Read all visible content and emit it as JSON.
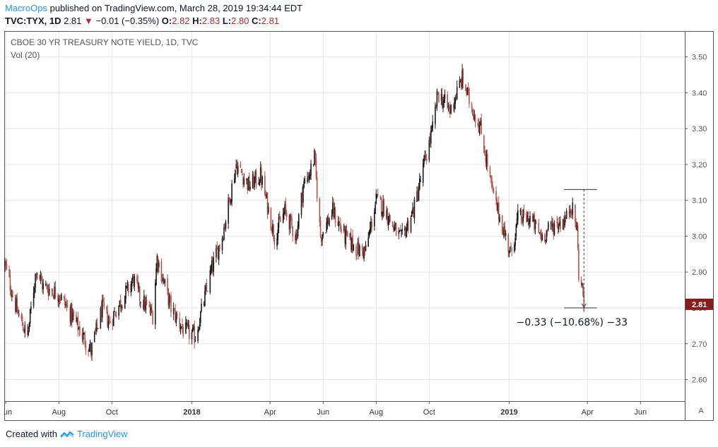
{
  "header": {
    "publisher": "MacroOps",
    "published_text": "published on TradingView.com, March 28, 2019 19:34:44 EDT",
    "symbol": "TVC:TYX, 1D",
    "last": "2.81",
    "change_arrow": "▼",
    "change": "−0.01 (−0.35%)",
    "o_label": "O:",
    "o_value": "2.82",
    "h_label": "H:",
    "h_value": "2.83",
    "l_label": "L:",
    "l_value": "2.80",
    "c_label": "C:",
    "c_value": "2.81"
  },
  "footer": {
    "created_with": "Created with",
    "brand": "TradingView",
    "logo_icon": "tradingview-logo-icon"
  },
  "axis_button": "A",
  "chart_data": {
    "type": "candlestick",
    "title": "CBOE 30 YR TREASURY NOTE YIELD, 1D, TVC",
    "subtitle": "Vol (20)",
    "ylim": [
      2.54,
      3.57
    ],
    "y_ticks": [
      "3.50",
      "3.40",
      "3.30",
      "3.20",
      "3.10",
      "3.00",
      "2.90",
      "2.80",
      "2.70",
      "2.60"
    ],
    "y_tick_values": [
      3.5,
      3.4,
      3.3,
      3.2,
      3.1,
      3.0,
      2.9,
      2.8,
      2.7,
      2.6
    ],
    "x_ticks": [
      {
        "label": "Jun",
        "date": "2017-06-01",
        "bold": false
      },
      {
        "label": "Aug",
        "date": "2017-08-01",
        "bold": false
      },
      {
        "label": "Oct",
        "date": "2017-10-01",
        "bold": false
      },
      {
        "label": "2018",
        "date": "2018-01-01",
        "bold": true
      },
      {
        "label": "Apr",
        "date": "2018-04-01",
        "bold": false
      },
      {
        "label": "Jun",
        "date": "2018-06-01",
        "bold": false
      },
      {
        "label": "Aug",
        "date": "2018-08-01",
        "bold": false
      },
      {
        "label": "Oct",
        "date": "2018-10-01",
        "bold": false
      },
      {
        "label": "2019",
        "date": "2019-01-01",
        "bold": true
      },
      {
        "label": "Apr",
        "date": "2019-04-01",
        "bold": false
      },
      {
        "label": "Jun",
        "date": "2019-06-01",
        "bold": false
      }
    ],
    "x_range": [
      "2017-05-31",
      "2019-07-22"
    ],
    "last_price_label": "2.81",
    "colors": {
      "up": "#1a1a1a",
      "down": "#b5544e",
      "last_price": "#8b1a1a",
      "grid": "#e6e6e6"
    },
    "path": [
      [
        "2017-05-31",
        2.92
      ],
      [
        "2017-06-14",
        2.79
      ],
      [
        "2017-06-26",
        2.72
      ],
      [
        "2017-07-06",
        2.91
      ],
      [
        "2017-07-14",
        2.86
      ],
      [
        "2017-08-01",
        2.84
      ],
      [
        "2017-08-18",
        2.77
      ],
      [
        "2017-09-07",
        2.68
      ],
      [
        "2017-09-20",
        2.8
      ],
      [
        "2017-09-28",
        2.76
      ],
      [
        "2017-10-12",
        2.82
      ],
      [
        "2017-10-26",
        2.88
      ],
      [
        "2017-11-02",
        2.83
      ],
      [
        "2017-11-17",
        2.78
      ],
      [
        "2017-11-22",
        2.94
      ],
      [
        "2017-12-08",
        2.8
      ],
      [
        "2017-12-22",
        2.74
      ],
      [
        "2018-01-05",
        2.72
      ],
      [
        "2018-01-24",
        2.91
      ],
      [
        "2018-02-05",
        3.0
      ],
      [
        "2018-02-21",
        3.2
      ],
      [
        "2018-03-08",
        3.14
      ],
      [
        "2018-03-21",
        3.17
      ],
      [
        "2018-04-06",
        3.0
      ],
      [
        "2018-04-18",
        3.07
      ],
      [
        "2018-05-01",
        3.0
      ],
      [
        "2018-05-09",
        3.14
      ],
      [
        "2018-05-17",
        3.18
      ],
      [
        "2018-05-22",
        3.22
      ],
      [
        "2018-05-29",
        3.0
      ],
      [
        "2018-06-12",
        3.07
      ],
      [
        "2018-06-26",
        3.0
      ],
      [
        "2018-07-12",
        2.96
      ],
      [
        "2018-07-20",
        2.96
      ],
      [
        "2018-08-01",
        3.1
      ],
      [
        "2018-08-10",
        3.08
      ],
      [
        "2018-08-22",
        3.02
      ],
      [
        "2018-08-30",
        2.99
      ],
      [
        "2018-09-14",
        3.08
      ],
      [
        "2018-09-25",
        3.2
      ],
      [
        "2018-10-05",
        3.3
      ],
      [
        "2018-10-11",
        3.4
      ],
      [
        "2018-10-25",
        3.35
      ],
      [
        "2018-11-08",
        3.44
      ],
      [
        "2018-11-16",
        3.38
      ],
      [
        "2018-11-29",
        3.3
      ],
      [
        "2018-12-07",
        3.2
      ],
      [
        "2018-12-13",
        3.12
      ],
      [
        "2018-12-24",
        3.03
      ],
      [
        "2019-01-03",
        2.95
      ],
      [
        "2019-01-11",
        3.05
      ],
      [
        "2019-01-25",
        3.05
      ],
      [
        "2019-02-07",
        3.0
      ],
      [
        "2019-02-21",
        3.03
      ],
      [
        "2019-03-01",
        3.04
      ],
      [
        "2019-03-08",
        3.05
      ],
      [
        "2019-03-13",
        3.09
      ],
      [
        "2019-03-20",
        3.02
      ],
      [
        "2019-03-22",
        2.9
      ],
      [
        "2019-03-27",
        2.84
      ],
      [
        "2019-03-28",
        2.81
      ]
    ],
    "annotation": {
      "text": "−0.33 (−10.68%) −33",
      "from": {
        "date": "2019-03-05",
        "value": 3.13
      },
      "to": {
        "date": "2019-04-12",
        "value": 2.8
      }
    }
  }
}
